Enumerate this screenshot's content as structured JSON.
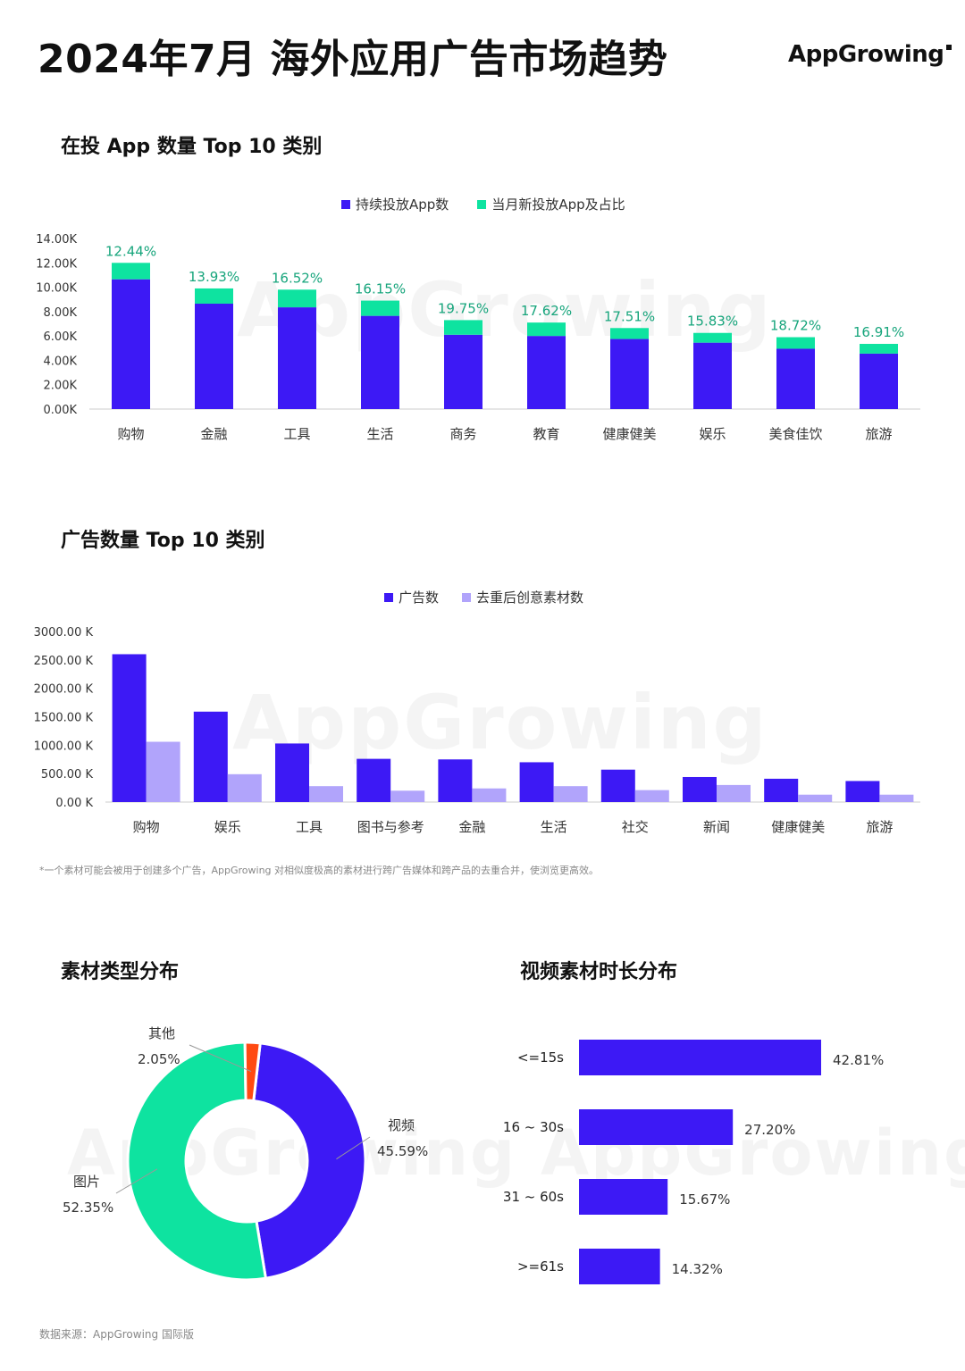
{
  "header": {
    "title": "2024年7月 海外应用广告市场趋势",
    "logo": "AppGrowing"
  },
  "watermark": "AppGrowing",
  "colors": {
    "blue": "#3d19f5",
    "green": "#0ee3a0",
    "lavender": "#b1a4fb",
    "orange": "#ff4a12",
    "pct_text": "#17a57c"
  },
  "charts": {
    "app_count": {
      "title": "在投 App 数量 Top 10 类别",
      "legend": [
        "持续投放App数",
        "当月新投放App及占比"
      ]
    },
    "ad_count": {
      "title": "广告数量 Top 10 类别",
      "legend": [
        "广告数",
        "去重后创意素材数"
      ],
      "footnote": "*一个素材可能会被用于创建多个广告，AppGrowing 对相似度极高的素材进行跨广告媒体和跨产品的去重合并，使浏览更高效。"
    },
    "material_type": {
      "title": "素材类型分布"
    },
    "video_duration": {
      "title": "视频素材时长分布"
    }
  },
  "source": "数据来源：AppGrowing 国际版",
  "chart_data": [
    {
      "type": "bar",
      "stacked": true,
      "title": "在投 App 数量 Top 10 类别",
      "categories": [
        "购物",
        "金融",
        "工具",
        "生活",
        "商务",
        "教育",
        "健康健美",
        "娱乐",
        "美食佳饮",
        "旅游"
      ],
      "series": [
        {
          "name": "持续投放App数",
          "values": [
            10.65,
            8.65,
            8.35,
            7.65,
            6.1,
            6.0,
            5.75,
            5.45,
            4.95,
            4.55
          ]
        },
        {
          "name": "当月新投放App及占比",
          "values": [
            1.35,
            1.25,
            1.45,
            1.25,
            1.2,
            1.1,
            0.9,
            0.8,
            0.95,
            0.8
          ]
        }
      ],
      "top_labels": [
        "12.44%",
        "13.93%",
        "16.52%",
        "16.15%",
        "19.75%",
        "17.62%",
        "17.51%",
        "15.83%",
        "18.72%",
        "16.91%"
      ],
      "yticks": [
        "0.00K",
        "2.00K",
        "4.00K",
        "6.00K",
        "8.00K",
        "10.00K",
        "12.00K",
        "14.00K"
      ],
      "ylim": [
        0,
        14
      ],
      "legend_position": "top-center"
    },
    {
      "type": "bar",
      "title": "广告数量 Top 10 类别",
      "categories": [
        "购物",
        "娱乐",
        "工具",
        "图书与参考",
        "金融",
        "生活",
        "社交",
        "新闻",
        "健康健美",
        "旅游"
      ],
      "series": [
        {
          "name": "广告数",
          "values": [
            2600,
            1590,
            1030,
            760,
            750,
            700,
            570,
            440,
            410,
            370
          ]
        },
        {
          "name": "去重后创意素材数",
          "values": [
            1060,
            490,
            280,
            200,
            240,
            280,
            210,
            300,
            130,
            130
          ]
        }
      ],
      "yticks": [
        "0.00 K",
        "500.00 K",
        "1000.00 K",
        "1500.00 K",
        "2000.00 K",
        "2500.00 K",
        "3000.00 K"
      ],
      "ylim": [
        0,
        3000
      ],
      "legend_position": "top-center"
    },
    {
      "type": "pie",
      "donut": true,
      "title": "素材类型分布",
      "slices": [
        {
          "label": "视频",
          "value": 45.59,
          "text": "45.59%"
        },
        {
          "label": "图片",
          "value": 52.35,
          "text": "52.35%"
        },
        {
          "label": "其他",
          "value": 2.05,
          "text": "2.05%"
        }
      ]
    },
    {
      "type": "bar",
      "orientation": "horizontal",
      "title": "视频素材时长分布",
      "categories": [
        "<=15s",
        "16 ~ 30s",
        "31 ~ 60s",
        ">=61s"
      ],
      "values": [
        42.81,
        27.2,
        15.67,
        14.32
      ],
      "labels": [
        "42.81%",
        "27.20%",
        "15.67%",
        "14.32%"
      ]
    }
  ]
}
